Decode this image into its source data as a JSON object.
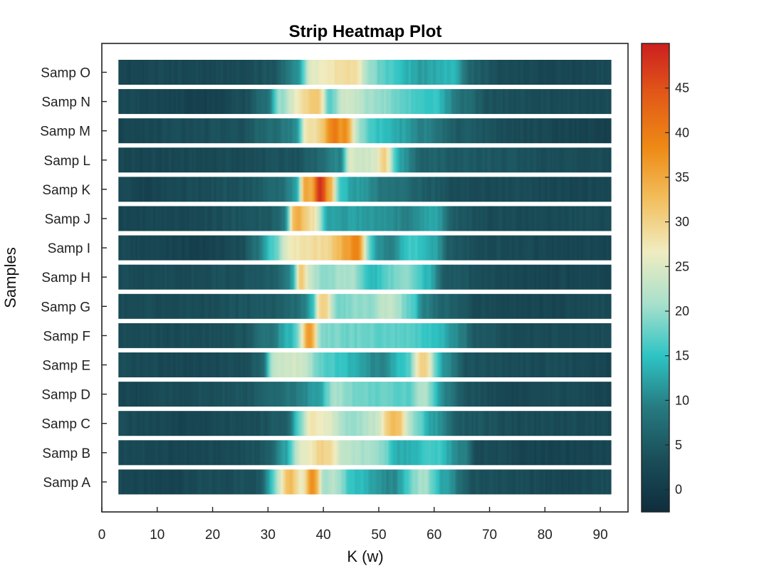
{
  "chart_data": {
    "type": "heatmap",
    "title": "Strip Heatmap Plot",
    "xlabel": "K (w)",
    "ylabel": "Samples",
    "xlim": [
      0,
      95
    ],
    "x_ticks": [
      0,
      10,
      20,
      30,
      40,
      50,
      60,
      70,
      80,
      90
    ],
    "x_range": [
      3,
      92
    ],
    "samples": [
      "Samp A",
      "Samp B",
      "Samp C",
      "Samp D",
      "Samp E",
      "Samp F",
      "Samp G",
      "Samp H",
      "Samp I",
      "Samp J",
      "Samp K",
      "Samp L",
      "Samp M",
      "Samp N",
      "Samp O"
    ],
    "colorbar": {
      "range": [
        -2.5,
        50
      ],
      "ticks": [
        0,
        5,
        10,
        15,
        20,
        25,
        30,
        35,
        40,
        45
      ],
      "colors": [
        "#0f2d3d",
        "#1a4d58",
        "#267a80",
        "#2ec4c4",
        "#a8e0cc",
        "#f0ecc0",
        "#f2bf5e",
        "#ee8a15",
        "#e25a18",
        "#cc1f1f"
      ]
    },
    "rows": [
      {
        "sample": "Samp A",
        "bg": [
          [
            3,
            2.5
          ],
          [
            10,
            1.5
          ],
          [
            20,
            3
          ],
          [
            28,
            4
          ],
          [
            31,
            10
          ],
          [
            35,
            6
          ],
          [
            40,
            15
          ],
          [
            47,
            14
          ],
          [
            52,
            10
          ],
          [
            58,
            21
          ],
          [
            62,
            12
          ],
          [
            67,
            4
          ],
          [
            75,
            3
          ],
          [
            85,
            2
          ],
          [
            92,
            3
          ]
        ],
        "peaks": [
          [
            34,
            33,
            2
          ],
          [
            38,
            38,
            1.2
          ],
          [
            42,
            22,
            1.5
          ]
        ]
      },
      {
        "sample": "Samp B",
        "bg": [
          [
            3,
            3
          ],
          [
            15,
            2
          ],
          [
            25,
            3
          ],
          [
            30,
            5
          ],
          [
            33,
            12
          ],
          [
            36,
            25
          ],
          [
            40,
            27
          ],
          [
            44,
            22
          ],
          [
            50,
            20
          ],
          [
            54,
            13
          ],
          [
            60,
            16
          ],
          [
            65,
            10
          ],
          [
            68,
            3
          ],
          [
            80,
            1.5
          ],
          [
            92,
            2
          ]
        ],
        "peaks": [
          [
            40,
            30,
            1.5
          ]
        ]
      },
      {
        "sample": "Samp C",
        "bg": [
          [
            3,
            3
          ],
          [
            15,
            2
          ],
          [
            25,
            3
          ],
          [
            33,
            5
          ],
          [
            36,
            18
          ],
          [
            40,
            26
          ],
          [
            45,
            20
          ],
          [
            50,
            23
          ],
          [
            52,
            30
          ],
          [
            56,
            20
          ],
          [
            60,
            12
          ],
          [
            65,
            5
          ],
          [
            75,
            3
          ],
          [
            85,
            3
          ],
          [
            92,
            2.5
          ]
        ],
        "peaks": [
          [
            53,
            33,
            1.2
          ],
          [
            38,
            28,
            1
          ]
        ]
      },
      {
        "sample": "Samp D",
        "bg": [
          [
            3,
            2
          ],
          [
            15,
            3
          ],
          [
            25,
            4
          ],
          [
            30,
            6
          ],
          [
            35,
            9
          ],
          [
            39,
            12
          ],
          [
            42,
            21
          ],
          [
            47,
            18
          ],
          [
            55,
            17
          ],
          [
            58,
            22
          ],
          [
            62,
            10
          ],
          [
            66,
            4
          ],
          [
            75,
            2
          ],
          [
            85,
            3
          ],
          [
            92,
            2
          ]
        ],
        "peaks": []
      },
      {
        "sample": "Samp E",
        "bg": [
          [
            3,
            3
          ],
          [
            15,
            2.5
          ],
          [
            25,
            3
          ],
          [
            29,
            6
          ],
          [
            31,
            23
          ],
          [
            36,
            24
          ],
          [
            40,
            17
          ],
          [
            45,
            14
          ],
          [
            50,
            10
          ],
          [
            55,
            16
          ],
          [
            58,
            27
          ],
          [
            62,
            11
          ],
          [
            66,
            4
          ],
          [
            75,
            3
          ],
          [
            85,
            3
          ],
          [
            92,
            2
          ]
        ],
        "peaks": [
          [
            58,
            30,
            0.8
          ]
        ]
      },
      {
        "sample": "Samp F",
        "bg": [
          [
            3,
            3
          ],
          [
            15,
            3
          ],
          [
            25,
            4
          ],
          [
            30,
            8
          ],
          [
            34,
            14
          ],
          [
            37,
            25
          ],
          [
            40,
            19
          ],
          [
            45,
            18
          ],
          [
            55,
            17
          ],
          [
            60,
            15
          ],
          [
            65,
            10
          ],
          [
            67,
            5
          ],
          [
            75,
            3
          ],
          [
            85,
            3
          ],
          [
            92,
            3
          ]
        ],
        "peaks": [
          [
            37.5,
            37,
            0.8
          ]
        ]
      },
      {
        "sample": "Samp G",
        "bg": [
          [
            3,
            3
          ],
          [
            15,
            3
          ],
          [
            25,
            4
          ],
          [
            30,
            5
          ],
          [
            35,
            7
          ],
          [
            38,
            12
          ],
          [
            40,
            27
          ],
          [
            42,
            18
          ],
          [
            48,
            20
          ],
          [
            52,
            23
          ],
          [
            56,
            17
          ],
          [
            58,
            10
          ],
          [
            62,
            6
          ],
          [
            68,
            3
          ],
          [
            80,
            2
          ],
          [
            92,
            3
          ]
        ],
        "peaks": [
          [
            40,
            30,
            1
          ]
        ]
      },
      {
        "sample": "Samp H",
        "bg": [
          [
            3,
            3
          ],
          [
            15,
            3
          ],
          [
            25,
            4
          ],
          [
            30,
            5
          ],
          [
            35,
            10
          ],
          [
            37,
            23
          ],
          [
            40,
            20
          ],
          [
            45,
            21
          ],
          [
            49,
            14
          ],
          [
            52,
            18
          ],
          [
            55,
            20
          ],
          [
            59,
            14
          ],
          [
            62,
            5
          ],
          [
            70,
            3
          ],
          [
            80,
            2
          ],
          [
            92,
            2
          ]
        ],
        "peaks": [
          [
            36,
            31,
            0.8
          ]
        ]
      },
      {
        "sample": "Samp I",
        "bg": [
          [
            3,
            2.5
          ],
          [
            10,
            2
          ],
          [
            18,
            1
          ],
          [
            25,
            3
          ],
          [
            28,
            8
          ],
          [
            31,
            17
          ],
          [
            34,
            27
          ],
          [
            40,
            29
          ],
          [
            44,
            34
          ],
          [
            47,
            14
          ],
          [
            52,
            10
          ],
          [
            56,
            16
          ],
          [
            60,
            13
          ],
          [
            63,
            5
          ],
          [
            70,
            3
          ],
          [
            85,
            2
          ],
          [
            92,
            2
          ]
        ],
        "peaks": [
          [
            46,
            40,
            1.2
          ]
        ]
      },
      {
        "sample": "Samp J",
        "bg": [
          [
            3,
            2
          ],
          [
            15,
            2.5
          ],
          [
            25,
            4
          ],
          [
            30,
            5
          ],
          [
            33,
            8
          ],
          [
            35,
            30
          ],
          [
            38,
            28
          ],
          [
            41,
            12
          ],
          [
            48,
            12
          ],
          [
            55,
            10
          ],
          [
            60,
            13
          ],
          [
            64,
            5
          ],
          [
            70,
            3
          ],
          [
            85,
            3
          ],
          [
            92,
            3
          ]
        ],
        "peaks": [
          [
            35.5,
            34,
            1
          ]
        ]
      },
      {
        "sample": "Samp K",
        "bg": [
          [
            3,
            2.5
          ],
          [
            7,
            1.5
          ],
          [
            15,
            3
          ],
          [
            25,
            4
          ],
          [
            32,
            7
          ],
          [
            35,
            11
          ],
          [
            37,
            23
          ],
          [
            42,
            16
          ],
          [
            46,
            12
          ],
          [
            52,
            8
          ],
          [
            60,
            5
          ],
          [
            65,
            3
          ],
          [
            75,
            3
          ],
          [
            85,
            2
          ],
          [
            92,
            2.5
          ]
        ],
        "peaks": [
          [
            39.5,
            48,
            1.2
          ],
          [
            37,
            36,
            0.8
          ],
          [
            41,
            35,
            0.8
          ]
        ]
      },
      {
        "sample": "Samp L",
        "bg": [
          [
            3,
            2
          ],
          [
            15,
            2.5
          ],
          [
            25,
            3
          ],
          [
            35,
            4
          ],
          [
            38,
            6
          ],
          [
            43,
            10
          ],
          [
            45,
            23
          ],
          [
            48,
            24
          ],
          [
            51,
            26
          ],
          [
            54,
            12
          ],
          [
            58,
            6
          ],
          [
            65,
            5
          ],
          [
            75,
            4
          ],
          [
            85,
            3
          ],
          [
            92,
            3
          ]
        ],
        "peaks": [
          [
            51,
            30,
            0.6
          ],
          [
            45,
            25,
            0.6
          ]
        ]
      },
      {
        "sample": "Samp M",
        "bg": [
          [
            3,
            2
          ],
          [
            15,
            3
          ],
          [
            25,
            4
          ],
          [
            30,
            7
          ],
          [
            35,
            10
          ],
          [
            37,
            28
          ],
          [
            45,
            22
          ],
          [
            50,
            15
          ],
          [
            58,
            10
          ],
          [
            65,
            5
          ],
          [
            75,
            3
          ],
          [
            85,
            2
          ],
          [
            92,
            1
          ]
        ],
        "peaks": [
          [
            42,
            40,
            1.5
          ],
          [
            44,
            38,
            0.8
          ]
        ]
      },
      {
        "sample": "Samp N",
        "bg": [
          [
            3,
            3
          ],
          [
            10,
            2
          ],
          [
            20,
            1
          ],
          [
            25,
            3
          ],
          [
            30,
            8
          ],
          [
            32,
            20
          ],
          [
            36,
            27
          ],
          [
            39,
            30
          ],
          [
            41,
            17
          ],
          [
            44,
            24
          ],
          [
            50,
            20
          ],
          [
            55,
            17
          ],
          [
            60,
            15
          ],
          [
            65,
            8
          ],
          [
            70,
            4
          ],
          [
            80,
            3
          ],
          [
            92,
            3
          ]
        ],
        "peaks": [
          [
            38,
            31,
            1.2
          ]
        ]
      },
      {
        "sample": "Samp O",
        "bg": [
          [
            3,
            2
          ],
          [
            15,
            2.5
          ],
          [
            25,
            3
          ],
          [
            30,
            4
          ],
          [
            35,
            10
          ],
          [
            38,
            26
          ],
          [
            42,
            27
          ],
          [
            46,
            28
          ],
          [
            48,
            20
          ],
          [
            52,
            16
          ],
          [
            58,
            12
          ],
          [
            63,
            14
          ],
          [
            67,
            6
          ],
          [
            72,
            3
          ],
          [
            85,
            2
          ],
          [
            92,
            3
          ]
        ],
        "peaks": [
          [
            44,
            29,
            1.5
          ]
        ]
      }
    ]
  }
}
